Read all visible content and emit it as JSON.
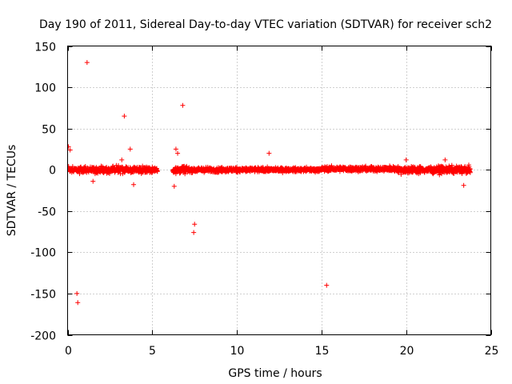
{
  "chart_data": {
    "type": "scatter",
    "title": "Day 190 of 2011, Sidereal Day-to-day VTEC variation (SDTVAR) for receiver sch2",
    "xlabel": "GPS time / hours",
    "ylabel": "SDTVAR / TECUs",
    "xlim": [
      0,
      25
    ],
    "ylim": [
      -200,
      150
    ],
    "xticks": [
      0,
      5,
      10,
      15,
      20,
      25
    ],
    "yticks": [
      -200,
      -150,
      -100,
      -50,
      0,
      50,
      100,
      150
    ],
    "grid": true,
    "marker": "+",
    "color": "#ff0000",
    "segments": [
      {
        "x_start": 0.0,
        "x_end": 5.3,
        "center": 0,
        "amplitude": 6
      },
      {
        "x_start": 6.2,
        "x_end": 7.0,
        "center": 0,
        "amplitude": 8
      },
      {
        "x_start": 7.0,
        "x_end": 11.5,
        "center": 0,
        "amplitude": 5
      },
      {
        "x_start": 11.5,
        "x_end": 15.0,
        "center": 0,
        "amplitude": 4
      },
      {
        "x_start": 15.0,
        "x_end": 19.5,
        "center": 1,
        "amplitude": 5
      },
      {
        "x_start": 19.5,
        "x_end": 23.8,
        "center": 0,
        "amplitude": 7
      }
    ],
    "outliers": [
      {
        "x": 1.15,
        "y": 130
      },
      {
        "x": 3.35,
        "y": 65
      },
      {
        "x": 6.8,
        "y": 78
      },
      {
        "x": 0.05,
        "y": 28
      },
      {
        "x": 0.15,
        "y": 24
      },
      {
        "x": 3.7,
        "y": 25
      },
      {
        "x": 6.4,
        "y": 25
      },
      {
        "x": 6.5,
        "y": 20
      },
      {
        "x": 3.9,
        "y": -18
      },
      {
        "x": 7.5,
        "y": -66
      },
      {
        "x": 7.45,
        "y": -76
      },
      {
        "x": 0.55,
        "y": -150
      },
      {
        "x": 0.6,
        "y": -161
      },
      {
        "x": 15.3,
        "y": -140
      },
      {
        "x": 6.3,
        "y": -20
      },
      {
        "x": 23.4,
        "y": -19
      },
      {
        "x": 11.9,
        "y": 20
      },
      {
        "x": 20.0,
        "y": 12
      },
      {
        "x": 22.3,
        "y": 12
      },
      {
        "x": 1.5,
        "y": -14
      },
      {
        "x": 3.0,
        "y": 5
      },
      {
        "x": 3.2,
        "y": 12
      }
    ]
  }
}
